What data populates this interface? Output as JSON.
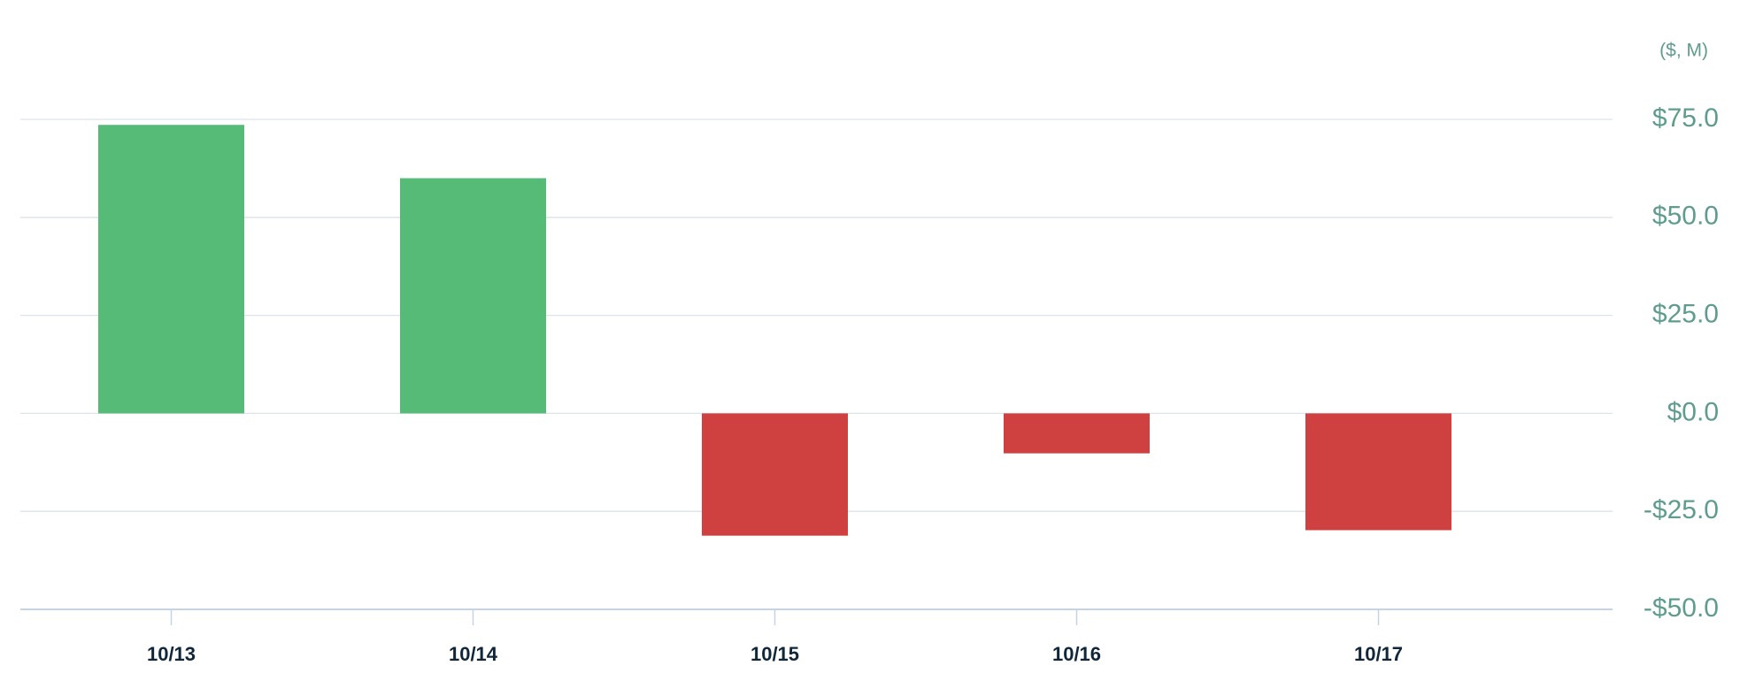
{
  "chart_data": {
    "type": "bar",
    "unit_label": "($, M)",
    "categories": [
      "10/13",
      "10/14",
      "10/15",
      "10/16",
      "10/17"
    ],
    "values": [
      73.6,
      60,
      -31.2,
      -10.2,
      -29.8
    ],
    "positive_color": "#57bb78",
    "negative_color": "#cf4040",
    "ylim": [
      -50,
      75
    ],
    "yticks": [
      {
        "value": -50,
        "label": "-$50.0"
      },
      {
        "value": -25,
        "label": "-$25.0"
      },
      {
        "value": 0,
        "label": "$0.0"
      },
      {
        "value": 25,
        "label": "$25.0"
      },
      {
        "value": 50,
        "label": "$50.0"
      },
      {
        "value": 75,
        "label": "$75.0"
      }
    ],
    "grid": true
  }
}
